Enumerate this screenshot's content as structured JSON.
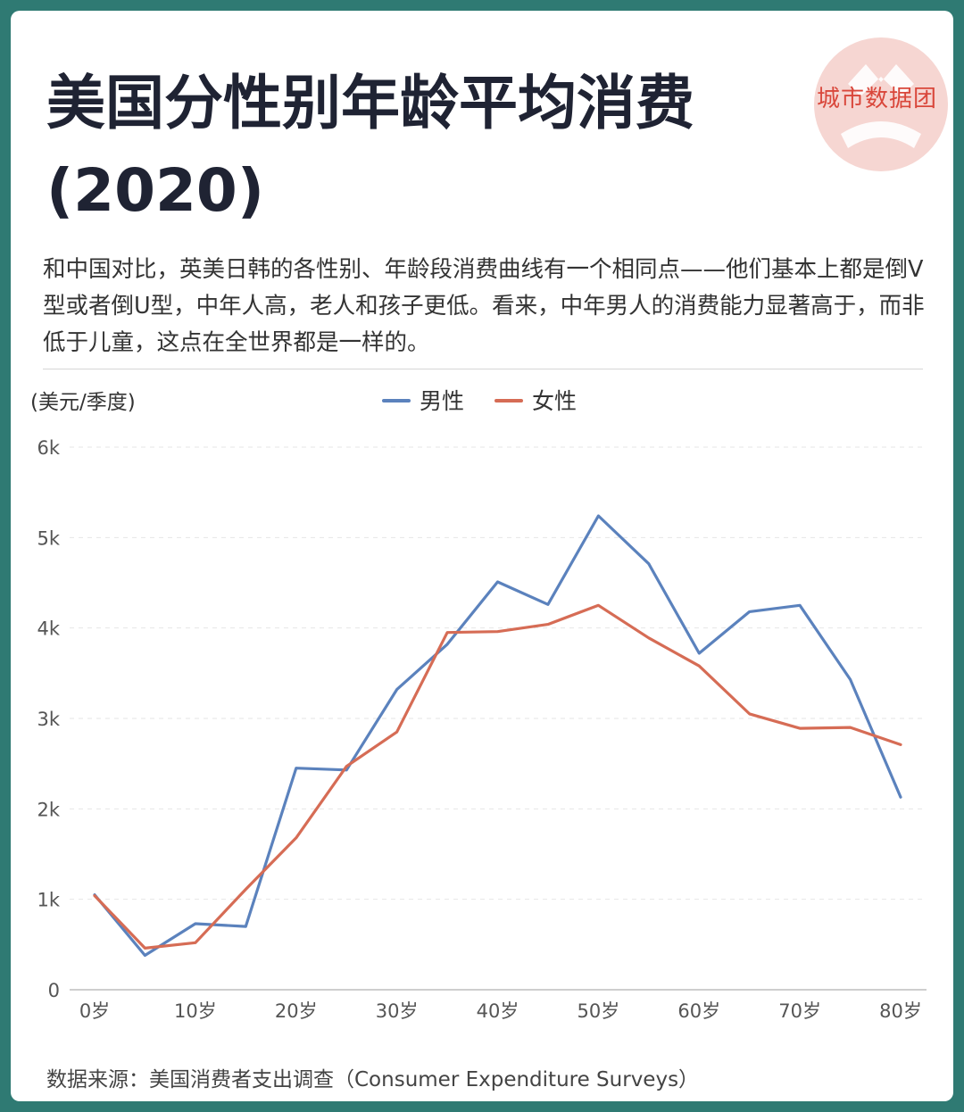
{
  "brand": {
    "name": "城市数据团",
    "logo_color": "#f6d6d2",
    "text_color": "#d9473b"
  },
  "title": {
    "line1": "美国分性别年龄平均消费",
    "line2": "(2020)"
  },
  "description": "和中国对比，英美日韩的各性别、年龄段消费曲线有一个相同点——他们基本上都是倒V型或者倒U型，中年人高，老人和孩子更低。看来，中年男人的消费能力显著高于，而非低于儿童，这点在全世界都是一样的。",
  "source": "数据来源：美国消费者支出调查（Consumer Expenditure Surveys）",
  "colors": {
    "background": "#2f7a73",
    "male": "#5b82bd",
    "female": "#d66c55"
  },
  "chart_data": {
    "type": "line",
    "title": "",
    "xlabel": "",
    "ylabel": "(美元/季度)",
    "x": [
      0,
      5,
      10,
      15,
      20,
      25,
      30,
      35,
      40,
      45,
      50,
      55,
      60,
      65,
      70,
      75,
      80
    ],
    "x_ticks": [
      {
        "value": 0,
        "label": "0岁"
      },
      {
        "value": 10,
        "label": "10岁"
      },
      {
        "value": 20,
        "label": "20岁"
      },
      {
        "value": 30,
        "label": "30岁"
      },
      {
        "value": 40,
        "label": "40岁"
      },
      {
        "value": 50,
        "label": "50岁"
      },
      {
        "value": 60,
        "label": "60岁"
      },
      {
        "value": 70,
        "label": "70岁"
      },
      {
        "value": 80,
        "label": "80岁"
      }
    ],
    "y_ticks": [
      {
        "value": 0,
        "label": "0"
      },
      {
        "value": 1000,
        "label": "1k"
      },
      {
        "value": 2000,
        "label": "2k"
      },
      {
        "value": 3000,
        "label": "3k"
      },
      {
        "value": 4000,
        "label": "4k"
      },
      {
        "value": 5000,
        "label": "5k"
      },
      {
        "value": 6000,
        "label": "6k"
      }
    ],
    "ylim": [
      0,
      6000
    ],
    "xlim": [
      0,
      80
    ],
    "grid": "horizontal dashed",
    "legend_position": "top-center",
    "series": [
      {
        "name": "男性",
        "color": "#5b82bd",
        "values": [
          1050,
          380,
          730,
          700,
          2450,
          2430,
          3320,
          3820,
          4510,
          4260,
          5240,
          4710,
          3720,
          4180,
          4250,
          3430,
          2130
        ]
      },
      {
        "name": "女性",
        "color": "#d66c55",
        "values": [
          1040,
          460,
          520,
          1110,
          1680,
          2470,
          2850,
          3950,
          3960,
          4040,
          4250,
          3890,
          3580,
          3050,
          2890,
          2900,
          2710
        ]
      }
    ]
  }
}
